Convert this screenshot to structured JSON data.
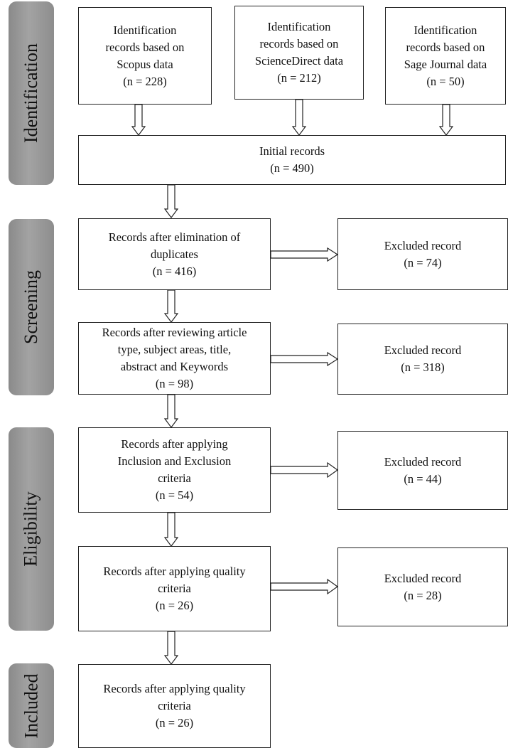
{
  "stages": {
    "identification": "Identification",
    "screening": "Screening",
    "eligibility": "Eligibility",
    "included": "Included"
  },
  "sources": {
    "scopus": [
      "Identification",
      "records based on",
      "Scopus data",
      "(n = 228)"
    ],
    "sciencedirect": [
      "Identification",
      "records based on",
      "ScienceDirect data",
      "(n = 212)"
    ],
    "sage": [
      "Identification",
      "records based on",
      "Sage Journal data",
      "(n = 50)"
    ]
  },
  "initial": [
    "Initial records",
    "(n = 490)"
  ],
  "dedup": [
    "Records after elimination of",
    "duplicates",
    "(n = 416)"
  ],
  "excluded1": [
    "Excluded record",
    "(n = 74)"
  ],
  "review": [
    "Records after reviewing article",
    "type, subject areas, title,",
    "abstract and Keywords",
    "(n = 98)"
  ],
  "excluded2": [
    "Excluded record",
    "(n = 318)"
  ],
  "criteria": [
    "Records after applying",
    "Inclusion and Exclusion",
    "criteria",
    "(n = 54)"
  ],
  "excluded3": [
    "Excluded record",
    "(n = 44)"
  ],
  "quality": [
    "Records after applying quality",
    "criteria",
    "(n = 26)"
  ],
  "excluded4": [
    "Excluded record",
    "(n = 28)"
  ],
  "final": [
    "Records after applying quality",
    "criteria",
    "(n = 26)"
  ]
}
